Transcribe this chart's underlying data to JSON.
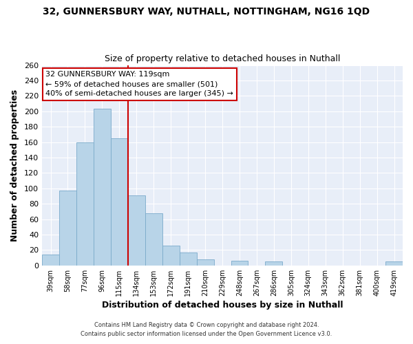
{
  "title": "32, GUNNERSBURY WAY, NUTHALL, NOTTINGHAM, NG16 1QD",
  "subtitle": "Size of property relative to detached houses in Nuthall",
  "xlabel": "Distribution of detached houses by size in Nuthall",
  "ylabel": "Number of detached properties",
  "bin_labels": [
    "39sqm",
    "58sqm",
    "77sqm",
    "96sqm",
    "115sqm",
    "134sqm",
    "153sqm",
    "172sqm",
    "191sqm",
    "210sqm",
    "229sqm",
    "248sqm",
    "267sqm",
    "286sqm",
    "305sqm",
    "324sqm",
    "343sqm",
    "362sqm",
    "381sqm",
    "400sqm",
    "419sqm"
  ],
  "bar_heights": [
    14,
    97,
    160,
    203,
    165,
    91,
    68,
    26,
    17,
    8,
    0,
    6,
    0,
    5,
    0,
    0,
    0,
    0,
    0,
    0,
    5
  ],
  "bar_color": "#b8d4e8",
  "bar_edge_color": "#7aaaca",
  "highlight_line_color": "#cc0000",
  "annotation_text": "32 GUNNERSBURY WAY: 119sqm\n← 59% of detached houses are smaller (501)\n40% of semi-detached houses are larger (345) →",
  "annotation_box_color": "#ffffff",
  "annotation_box_edge": "#cc0000",
  "ylim": [
    0,
    260
  ],
  "yticks": [
    0,
    20,
    40,
    60,
    80,
    100,
    120,
    140,
    160,
    180,
    200,
    220,
    240,
    260
  ],
  "plot_bg_color": "#e8eef8",
  "fig_bg_color": "#ffffff",
  "footer_line1": "Contains HM Land Registry data © Crown copyright and database right 2024.",
  "footer_line2": "Contains public sector information licensed under the Open Government Licence v3.0."
}
